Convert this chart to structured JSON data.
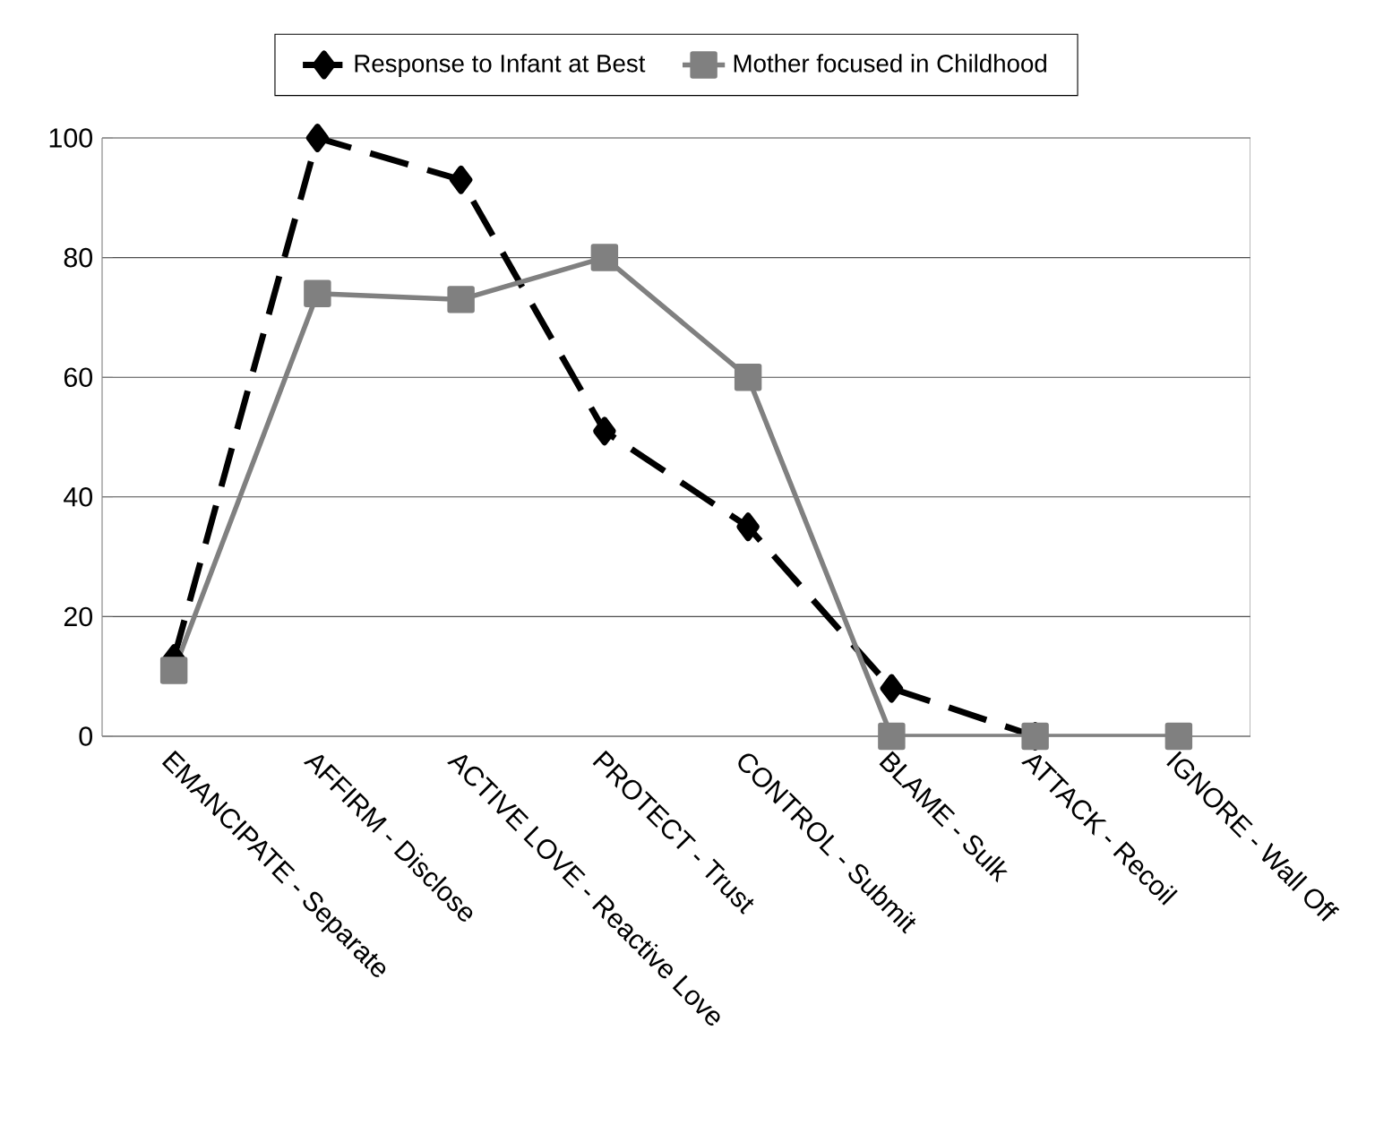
{
  "chart_data": {
    "type": "line",
    "categories": [
      "EMANCIPATE - Separate",
      "AFFIRM - Disclose",
      "ACTIVE LOVE - Reactive Love",
      "PROTECT - Trust",
      "CONTROL - Submit",
      "BLAME - Sulk",
      "ATTACK - Recoil",
      "IGNORE - Wall Off"
    ],
    "series": [
      {
        "name": "Response to Infant at Best",
        "color": "#000000",
        "marker": "diamond",
        "line_style": "dashed",
        "values": [
          13,
          100,
          93,
          51,
          35,
          8,
          0,
          null
        ]
      },
      {
        "name": "Mother focused in Childhood",
        "color": "#808080",
        "marker": "square",
        "line_style": "solid",
        "values": [
          11,
          74,
          73,
          80,
          60,
          0,
          0,
          0
        ]
      }
    ],
    "ylim": [
      0,
      100
    ],
    "yticks": [
      0,
      20,
      40,
      60,
      80,
      100
    ],
    "grid": "y",
    "legend": "top"
  }
}
